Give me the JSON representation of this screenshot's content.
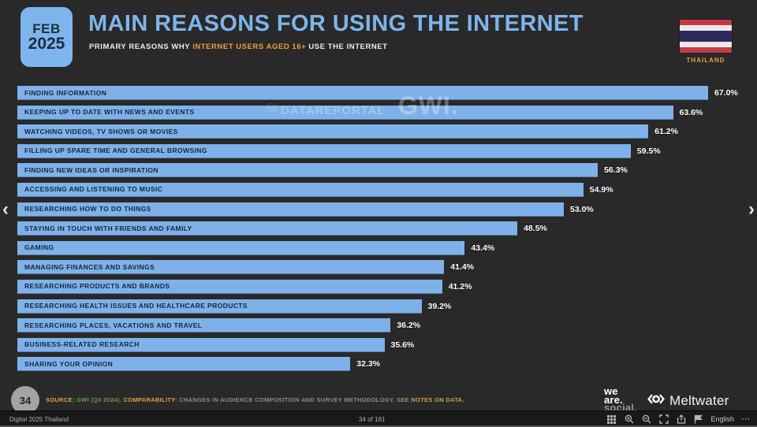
{
  "header": {
    "badge_month": "FEB",
    "badge_year": "2025",
    "title": "MAIN REASONS FOR USING THE INTERNET",
    "subtitle_prefix": "PRIMARY REASONS WHY ",
    "subtitle_highlight": "INTERNET USERS AGED 16+",
    "subtitle_suffix": " USE THE INTERNET",
    "country": "THAILAND"
  },
  "chart_data": {
    "type": "bar",
    "orientation": "horizontal",
    "title": "MAIN REASONS FOR USING THE INTERNET",
    "categories": [
      "FINDING INFORMATION",
      "KEEPING UP TO DATE WITH NEWS AND EVENTS",
      "WATCHING VIDEOS, TV SHOWS OR MOVIES",
      "FILLING UP SPARE TIME AND GENERAL BROWSING",
      "FINDING NEW IDEAS OR INSPIRATION",
      "ACCESSING AND LISTENING TO MUSIC",
      "RESEARCHING HOW TO DO THINGS",
      "STAYING IN TOUCH WITH FRIENDS AND FAMILY",
      "GAMING",
      "MANAGING FINANCES AND SAVINGS",
      "RESEARCHING PRODUCTS AND BRANDS",
      "RESEARCHING HEALTH ISSUES AND HEALTHCARE PRODUCTS",
      "RESEARCHING PLACES, VACATIONS AND TRAVEL",
      "BUSINESS-RELATED RESEARCH",
      "SHARING YOUR OPINION"
    ],
    "values": [
      67.0,
      63.6,
      61.2,
      59.5,
      56.3,
      54.9,
      53.0,
      48.5,
      43.4,
      41.4,
      41.2,
      39.2,
      36.2,
      35.6,
      32.3
    ],
    "value_labels": [
      "67.0%",
      "63.6%",
      "61.2%",
      "59.5%",
      "56.3%",
      "54.9%",
      "53.0%",
      "48.5%",
      "43.4%",
      "41.4%",
      "41.2%",
      "39.2%",
      "36.2%",
      "35.6%",
      "32.3%"
    ],
    "xlim": [
      0,
      67
    ],
    "bar_color": "#7eb1e9",
    "label_color": "#15273a",
    "value_color": "#ffffff",
    "grid": false,
    "legend": "none"
  },
  "watermark": {
    "dataportal": "DATAREPORTAL",
    "gwi": "GWI."
  },
  "nav": {
    "prev": "‹",
    "next": "›"
  },
  "footer": {
    "page_number": "34",
    "source_label": "SOURCE:",
    "source_value": " GWI (Q3 2024). ",
    "comparability_label": "COMPARABILITY:",
    "comparability_text": " CHANGES IN AUDIENCE COMPOSITION AND SURVEY METHODOLOGY. SEE ",
    "notes_link": "NOTES ON DATA.",
    "logo_we": "we",
    "logo_are": "are.",
    "logo_social": "social.",
    "meltwater_label": "Meltwater"
  },
  "viewer_bar": {
    "deck_title": "Digital 2025 Thailand",
    "page_indicator": "34 of 161",
    "language_label": "English",
    "more_label": "⋯"
  },
  "colors": {
    "background": "#292929",
    "accent_blue": "#7db5ec",
    "accent_orange": "#e8a23b",
    "source_green": "#639e58",
    "flag_red": "#c43a44",
    "flag_blue": "#2e2b5a"
  }
}
